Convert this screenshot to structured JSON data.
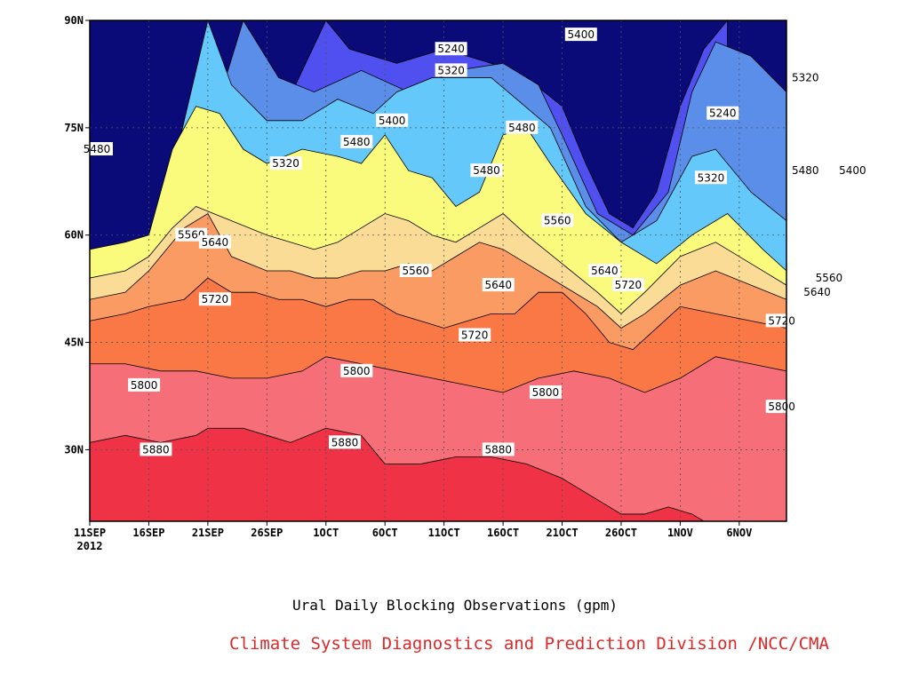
{
  "chart_data": {
    "type": "contour",
    "title": "Ural Daily Blocking Observations (gpm)",
    "credit": "Climate System Diagnostics and Prediction Division /NCC/CMA",
    "x_ticks": [
      "11SEP",
      "16SEP",
      "21SEP",
      "26SEP",
      "1OCT",
      "6OCT",
      "11OCT",
      "16OCT",
      "21OCT",
      "26OCT",
      "1NOV",
      "6NOV"
    ],
    "x_year_label": "2012",
    "y_ticks": [
      "30N",
      "45N",
      "60N",
      "75N",
      "90N"
    ],
    "y_tick_values": [
      30,
      45,
      60,
      75,
      90
    ],
    "ylim": [
      20,
      90
    ],
    "levels": [
      5240,
      5320,
      5400,
      5480,
      5560,
      5640,
      5720,
      5800,
      5880
    ],
    "fill_colors": [
      "#0a0a78",
      "#1414e6",
      "#5050f0",
      "#5a8ee8",
      "#64c8fa",
      "#fafa7d",
      "#fadc96",
      "#fa9b64",
      "#fa7846",
      "#f56e78",
      "#f03246"
    ],
    "grid": true,
    "contour_labels": [
      {
        "text": "5240",
        "x": 9,
        "y": 96
      },
      {
        "text": "5240",
        "x": 30,
        "y": 86
      },
      {
        "text": "5240",
        "x": 53,
        "y": 77
      },
      {
        "text": "5320",
        "x": 16,
        "y": 70
      },
      {
        "text": "5320",
        "x": 30,
        "y": 83
      },
      {
        "text": "5320",
        "x": 52,
        "y": 68
      },
      {
        "text": "5320",
        "x": 60,
        "y": 82
      },
      {
        "text": "5400",
        "x": 25,
        "y": 76
      },
      {
        "text": "5400",
        "x": 41,
        "y": 88
      },
      {
        "text": "5400",
        "x": 64,
        "y": 69
      },
      {
        "text": "5480",
        "x": 0,
        "y": 72
      },
      {
        "text": "5480",
        "x": 22,
        "y": 73
      },
      {
        "text": "5480",
        "x": 36,
        "y": 75
      },
      {
        "text": "5480",
        "x": 33,
        "y": 69
      },
      {
        "text": "5480",
        "x": 60,
        "y": 69
      },
      {
        "text": "5560",
        "x": 8,
        "y": 60
      },
      {
        "text": "5560",
        "x": 27,
        "y": 55
      },
      {
        "text": "5560",
        "x": 39,
        "y": 62
      },
      {
        "text": "5560",
        "x": 62,
        "y": 54
      },
      {
        "text": "5640",
        "x": 10,
        "y": 59
      },
      {
        "text": "5640",
        "x": 34,
        "y": 53
      },
      {
        "text": "5640",
        "x": 43,
        "y": 55
      },
      {
        "text": "5640",
        "x": 61,
        "y": 52
      },
      {
        "text": "5720",
        "x": 10,
        "y": 51
      },
      {
        "text": "5720",
        "x": 32,
        "y": 46
      },
      {
        "text": "5720",
        "x": 45,
        "y": 53
      },
      {
        "text": "5720",
        "x": 58,
        "y": 48
      },
      {
        "text": "5800",
        "x": 4,
        "y": 39
      },
      {
        "text": "5800",
        "x": 22,
        "y": 41
      },
      {
        "text": "5800",
        "x": 38,
        "y": 38
      },
      {
        "text": "5800",
        "x": 58,
        "y": 36
      },
      {
        "text": "5880",
        "x": 5,
        "y": 30
      },
      {
        "text": "5880",
        "x": 21,
        "y": 31
      },
      {
        "text": "5880",
        "x": 34,
        "y": 30
      }
    ]
  }
}
